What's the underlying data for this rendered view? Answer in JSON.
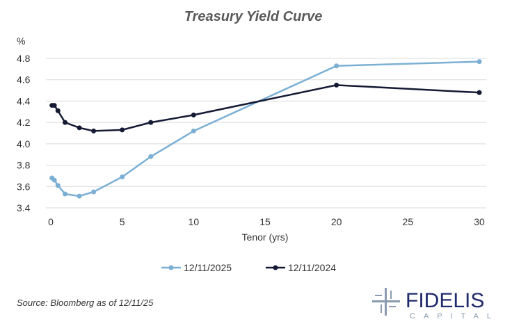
{
  "chart_data": {
    "type": "line",
    "title": "Treasury Yield Curve",
    "xlabel": "Tenor (yrs)",
    "ylabel": "%",
    "xlim": [
      0,
      30
    ],
    "ylim": [
      3.4,
      4.8
    ],
    "xticks": [
      0,
      5,
      10,
      15,
      20,
      25,
      30
    ],
    "yticks": [
      3.4,
      3.6,
      3.8,
      4.0,
      4.2,
      4.4,
      4.6,
      4.8
    ],
    "grid": "horizontal",
    "legend": "bottom",
    "x": [
      0.083,
      0.25,
      0.5,
      1,
      2,
      3,
      5,
      7,
      10,
      20,
      30
    ],
    "series": [
      {
        "name": "12/11/2025",
        "color": "#7bafd4",
        "values": [
          3.68,
          3.66,
          3.61,
          3.53,
          3.51,
          3.55,
          3.69,
          3.88,
          4.12,
          4.73,
          4.77
        ]
      },
      {
        "name": "12/11/2024",
        "color": "#141a33",
        "values": [
          4.36,
          4.36,
          4.31,
          4.2,
          4.15,
          4.12,
          4.13,
          4.2,
          4.27,
          4.55,
          4.48
        ]
      }
    ]
  },
  "source": "Source: Bloomberg as of 12/11/25",
  "logo": {
    "name": "FIDELIS",
    "sub": "CAPITAL",
    "color": "#1f2a6b"
  }
}
